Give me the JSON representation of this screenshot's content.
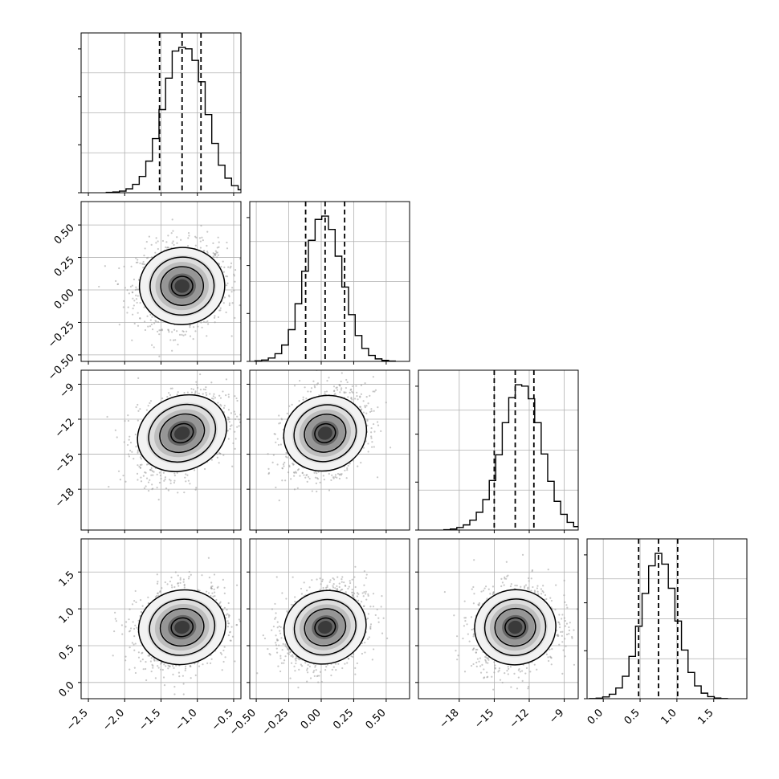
{
  "chart_data": {
    "type": "corner",
    "n_params": 4,
    "grid": true,
    "colors": {
      "line": "#000000",
      "points": "#9a9a9a",
      "grid": "#b0b0b0",
      "frame": "#000000"
    },
    "params": [
      {
        "range": [
          -2.6,
          -0.4
        ],
        "ticks": [
          -2.5,
          -2.0,
          -1.5,
          -1.0,
          -0.5
        ],
        "tick_labels": [
          "−2.5",
          "−2.0",
          "−1.5",
          "−1.0",
          "−0.5"
        ],
        "quantiles": [
          -1.52,
          -1.21,
          -0.95
        ],
        "center": -1.21,
        "sigma": 0.29,
        "hist_counts": [
          2,
          4,
          9,
          22,
          47,
          92,
          178,
          305,
          468,
          645,
          798,
          818,
          810,
          745,
          625,
          440,
          278,
          155,
          82,
          40,
          17,
          7,
          3
        ]
      },
      {
        "range": [
          -0.55,
          0.68
        ],
        "ticks": [
          -0.5,
          -0.25,
          0.0,
          0.25,
          0.5
        ],
        "tick_labels": [
          "−0.50",
          "−0.25",
          "0.00",
          "0.25",
          "0.50"
        ],
        "quantiles": [
          -0.12,
          0.03,
          0.18
        ],
        "center": 0.03,
        "sigma": 0.15,
        "hist_counts": [
          3,
          8,
          20,
          46,
          98,
          190,
          345,
          540,
          725,
          850,
          870,
          790,
          630,
          445,
          280,
          155,
          78,
          36,
          15,
          6,
          2
        ]
      },
      {
        "range": [
          -21.5,
          -7.8
        ],
        "ticks": [
          -18,
          -15,
          -12,
          -9
        ],
        "tick_labels": [
          "−18",
          "−15",
          "−12",
          "−9"
        ],
        "quantiles": [
          -15.0,
          -13.2,
          -11.6
        ],
        "center": -13.2,
        "sigma": 1.7,
        "hist_counts": [
          2,
          6,
          15,
          30,
          58,
          104,
          178,
          290,
          440,
          628,
          775,
          850,
          842,
          768,
          628,
          445,
          285,
          168,
          92,
          45,
          20,
          7
        ]
      },
      {
        "range": [
          -0.22,
          1.95
        ],
        "ticks": [
          0.0,
          0.5,
          1.0,
          1.5
        ],
        "tick_labels": [
          "0.0",
          "0.5",
          "1.0",
          "1.5"
        ],
        "quantiles": [
          0.48,
          0.75,
          1.01
        ],
        "center": 0.75,
        "sigma": 0.26,
        "hist_counts": [
          1,
          3,
          10,
          26,
          62,
          130,
          245,
          420,
          610,
          770,
          842,
          780,
          640,
          450,
          282,
          152,
          74,
          32,
          12,
          4,
          1
        ]
      }
    ],
    "correlations": {
      "1-0": 0.05,
      "2-0": 0.35,
      "2-1": 0.3,
      "3-0": 0.15,
      "3-1": 0.25,
      "3-2": 0.1
    },
    "y_tick_labels": {
      "1": [
        "0.50",
        "0.25",
        "0.00",
        "−0.25",
        "−0.50"
      ],
      "2": [
        "−9",
        "−12",
        "−15",
        "−18"
      ],
      "3": [
        "1.5",
        "1.0",
        "0.5",
        "0.0"
      ]
    }
  }
}
